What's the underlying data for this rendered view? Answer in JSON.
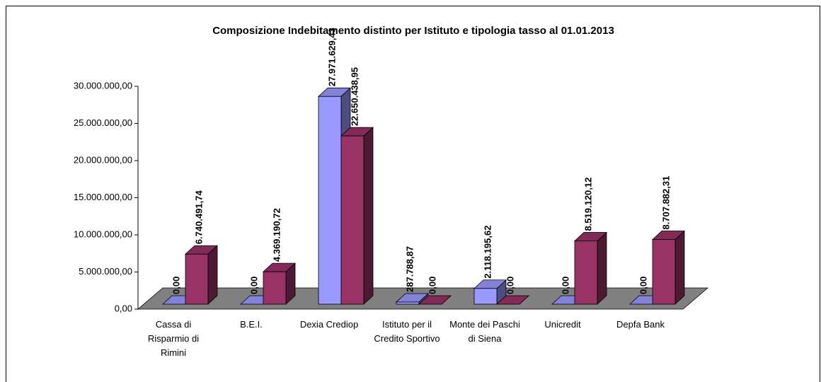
{
  "chart_data": {
    "type": "bar3d",
    "title": "Composizione Indebitamento distinto per Istituto e tipologia tasso al 01.01.2013",
    "categories": [
      "Cassa di Risparmio di Rimini",
      "B.E.I.",
      "Dexia Crediop",
      "Istituto per il Credito Sportivo",
      "Monte dei Paschi di Siena",
      "Unicredit",
      "Depfa Bank"
    ],
    "series": [
      {
        "color": "#9999ff",
        "values": [
          0,
          0,
          27971629.43,
          287788.87,
          2118195.62,
          0,
          0
        ],
        "value_labels": [
          "0,00",
          "0,00",
          "27.971.629,43",
          "287.788,87",
          "2.118.195,62",
          "0,00",
          "0,00"
        ]
      },
      {
        "color": "#993366",
        "values": [
          6740491.74,
          4369190.72,
          22650438.95,
          0,
          0,
          8519120.12,
          8707882.31
        ],
        "value_labels": [
          "6.740.491,74",
          "4.369.190,72",
          "22.650.438,95",
          "0,00",
          "0,00",
          "8.519.120,12",
          "8.707.882,31"
        ]
      }
    ],
    "ylim": [
      0,
      30000000
    ],
    "yticks": [
      {
        "value": 0,
        "label": "0,00"
      },
      {
        "value": 5000000,
        "label": "5.000.000,00"
      },
      {
        "value": 10000000,
        "label": "10.000.000,00"
      },
      {
        "value": 15000000,
        "label": "15.000.000,00"
      },
      {
        "value": 20000000,
        "label": "20.000.000,00"
      },
      {
        "value": 25000000,
        "label": "25.000.000,00"
      },
      {
        "value": 30000000,
        "label": "30.000.000,00"
      }
    ]
  }
}
